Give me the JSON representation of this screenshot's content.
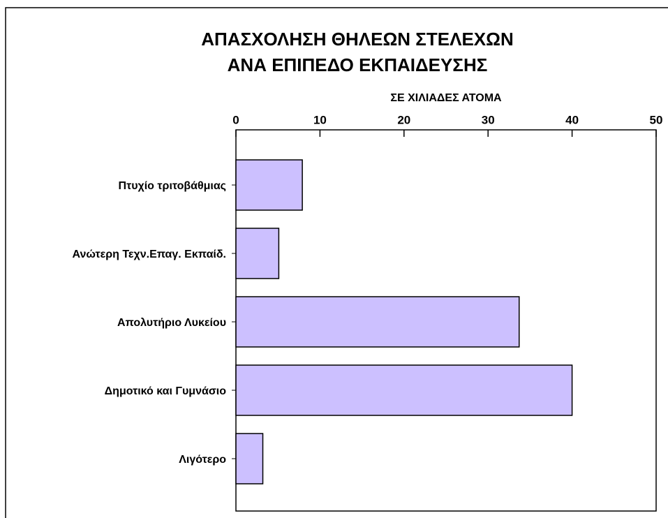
{
  "chart_data": {
    "type": "barh",
    "title": [
      "ΑΠΑΣΧΟΛΗΣΗ ΘΗΛΕΩΝ ΣΤΕΛΕΧΩΝ",
      "ΑΝΑ ΕΠΙΠΕΔΟ ΕΚΠΑΙΔΕΥΣΗΣ"
    ],
    "xlabel": "ΣΕ ΧΙΛΙΑΔΕΣ ΑΤΟΜΑ",
    "categories": [
      "Πτυχίο τριτοβάθμιας",
      "Ανώτερη Τεχν.Επαγ. Εκπαίδ.",
      "Απολυτήριο Λυκείου",
      "Δημοτικό και Γυμνάσιο",
      "Λιγότερο"
    ],
    "values": [
      7.9,
      5.1,
      33.7,
      40.0,
      3.2
    ],
    "color": "#ccc0ff",
    "xlim": [
      0,
      50
    ],
    "xticks": [
      0,
      10,
      20,
      30,
      40,
      50
    ],
    "grid": false
  }
}
